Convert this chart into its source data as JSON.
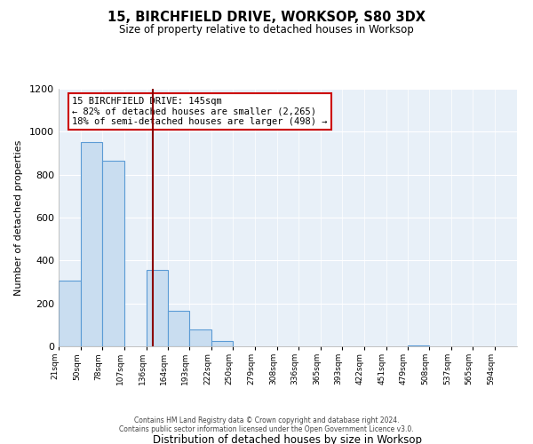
{
  "title": "15, BIRCHFIELD DRIVE, WORKSOP, S80 3DX",
  "subtitle": "Size of property relative to detached houses in Worksop",
  "xlabel": "Distribution of detached houses by size in Worksop",
  "ylabel": "Number of detached properties",
  "bin_labels": [
    "21sqm",
    "50sqm",
    "78sqm",
    "107sqm",
    "136sqm",
    "164sqm",
    "193sqm",
    "222sqm",
    "250sqm",
    "279sqm",
    "308sqm",
    "336sqm",
    "365sqm",
    "393sqm",
    "422sqm",
    "451sqm",
    "479sqm",
    "508sqm",
    "537sqm",
    "565sqm",
    "594sqm"
  ],
  "bar_values": [
    305,
    950,
    865,
    0,
    355,
    165,
    80,
    25,
    0,
    0,
    0,
    0,
    0,
    0,
    0,
    0,
    5,
    0,
    0,
    0,
    0
  ],
  "bar_color": "#c9ddf0",
  "bar_edge_color": "#5b9bd5",
  "property_line_x": 145,
  "property_line_color": "#8b0000",
  "annotation_title": "15 BIRCHFIELD DRIVE: 145sqm",
  "annotation_line1": "← 82% of detached houses are smaller (2,265)",
  "annotation_line2": "18% of semi-detached houses are larger (498) →",
  "annotation_box_color": "#ffffff",
  "annotation_box_edge_color": "#cc0000",
  "ylim": [
    0,
    1200
  ],
  "yticks": [
    0,
    200,
    400,
    600,
    800,
    1000,
    1200
  ],
  "footer1": "Contains HM Land Registry data © Crown copyright and database right 2024.",
  "footer2": "Contains public sector information licensed under the Open Government Licence v3.0.",
  "bin_edges": [
    21,
    50,
    78,
    107,
    136,
    164,
    193,
    222,
    250,
    279,
    308,
    336,
    365,
    393,
    422,
    451,
    479,
    508,
    537,
    565,
    594,
    623
  ]
}
